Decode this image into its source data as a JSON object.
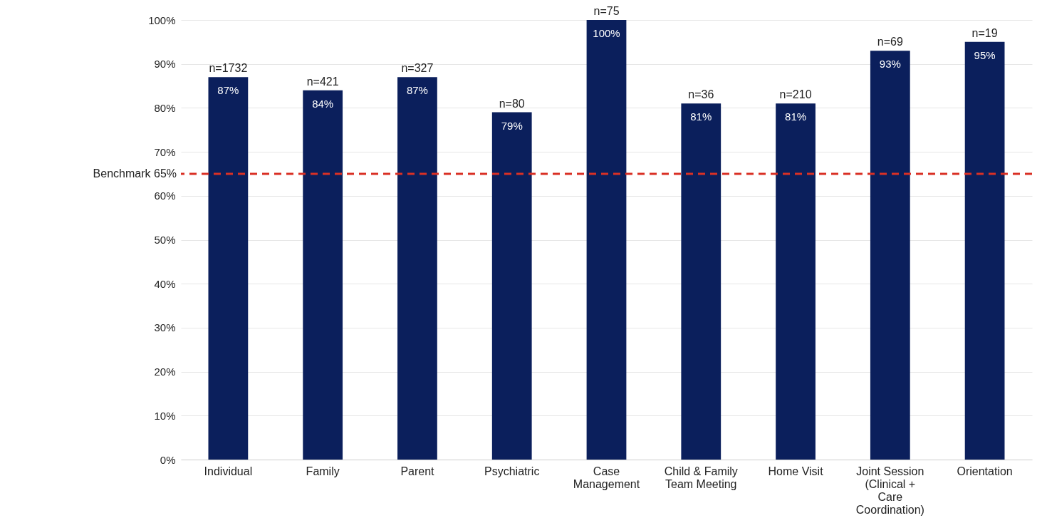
{
  "chart_data": {
    "type": "bar",
    "categories": [
      "Individual",
      "Family",
      "Parent",
      "Psychiatric",
      "Case Management",
      "Child & Family Team Meeting",
      "Home Visit",
      "Joint Session (Clinical + Care Coordination)",
      "Orientation"
    ],
    "values": [
      87,
      84,
      87,
      79,
      100,
      81,
      81,
      93,
      95
    ],
    "value_labels": [
      "87%",
      "84%",
      "87%",
      "79%",
      "100%",
      "81%",
      "81%",
      "93%",
      "95%"
    ],
    "color": "#0b1f5c",
    "ylim": [
      0,
      100
    ],
    "yticks": [
      {
        "value": 0,
        "label": "0%"
      },
      {
        "value": 10,
        "label": "10%"
      },
      {
        "value": 20,
        "label": "20%"
      },
      {
        "value": 30,
        "label": "30%"
      },
      {
        "value": 40,
        "label": "40%"
      },
      {
        "value": 50,
        "label": "50%"
      },
      {
        "value": 60,
        "label": "60%"
      },
      {
        "value": 70,
        "label": "70%"
      },
      {
        "value": 80,
        "label": "80%"
      },
      {
        "value": 90,
        "label": "90%"
      },
      {
        "value": 100,
        "label": "100%"
      }
    ],
    "grid": "y",
    "ref_lines": [
      {
        "axis": "y",
        "value": 65,
        "label": "Benchmark 65%",
        "color": "#d93025",
        "line_style": "dashed"
      }
    ],
    "annotations": [
      {
        "text": "n=1732",
        "x": "Individual",
        "y": 87
      },
      {
        "text": "n=421",
        "x": "Family",
        "y": 84
      },
      {
        "text": "n=327",
        "x": "Parent",
        "y": 87
      },
      {
        "text": "n=80",
        "x": "Psychiatric",
        "y": 79
      },
      {
        "text": "n=75",
        "x": "Case Management",
        "y": 100
      },
      {
        "text": "n=36",
        "x": "Child & Family Team Meeting",
        "y": 81
      },
      {
        "text": "n=210",
        "x": "Home Visit",
        "y": 81
      },
      {
        "text": "n=69",
        "x": "Joint Session (Clinical + Care Coordination)",
        "y": 93
      },
      {
        "text": "n=19",
        "x": "Orientation",
        "y": 95
      }
    ]
  }
}
